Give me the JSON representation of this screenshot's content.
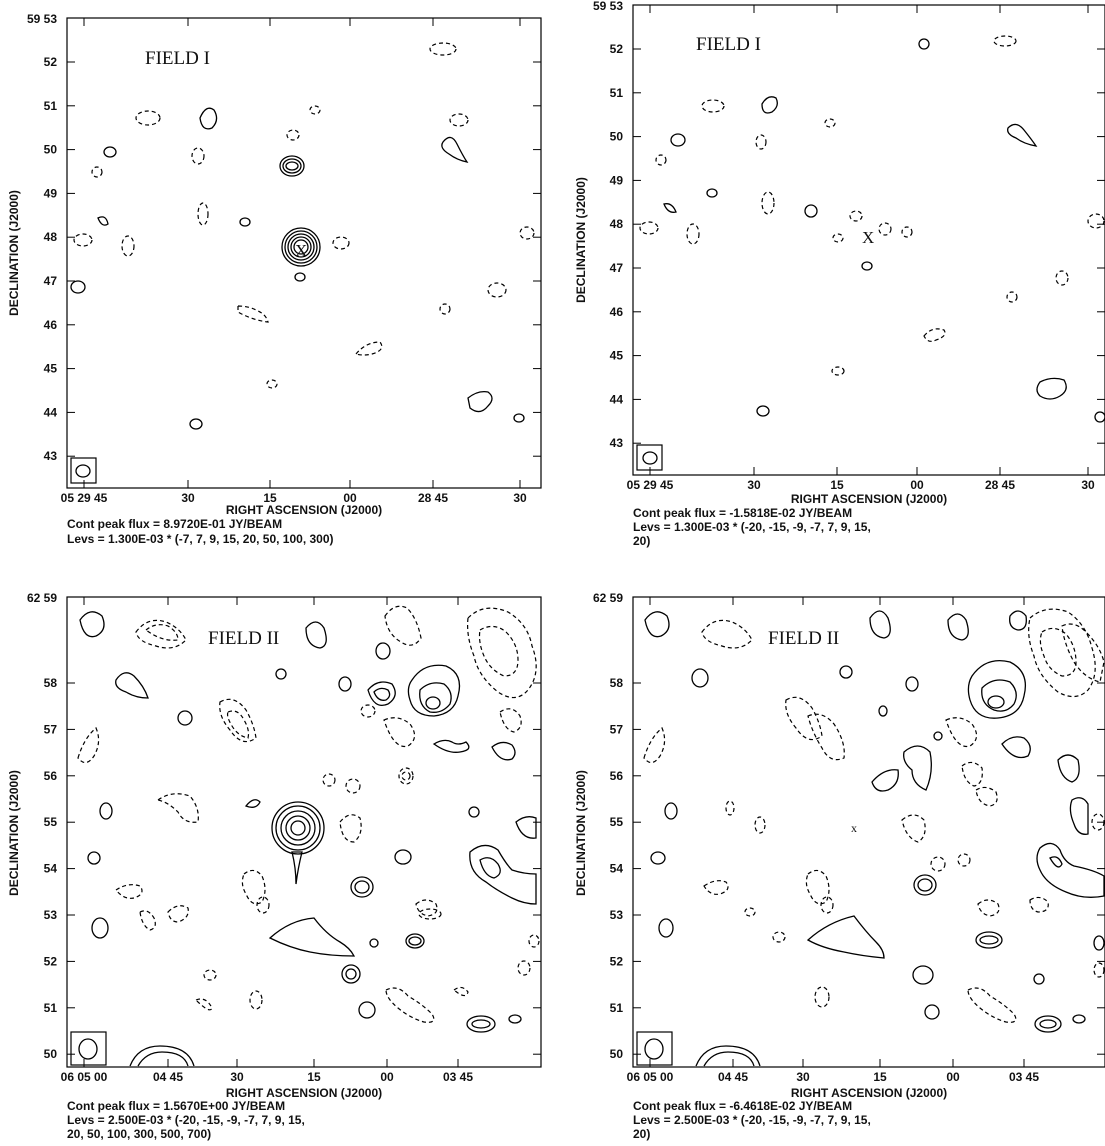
{
  "chart_data": [
    {
      "type": "contour",
      "panel": "top-left",
      "field_label": "FIELD I",
      "marker": "X",
      "xlabel": "RIGHT ASCENSION (J2000)",
      "ylabel": "DECLINATION (J2000)",
      "x_ticks": [
        "05 29 45",
        "30",
        "15",
        "00",
        "28 45",
        "30"
      ],
      "y_top_label": "59 53",
      "y_ticks": [
        "52",
        "51",
        "50",
        "49",
        "48",
        "47",
        "46",
        "45",
        "44",
        "43"
      ],
      "caption_lines": [
        "Cont peak flux =  8.9720E-01 JY/BEAM",
        "Levs = 1.300E-03 * (-7, 7, 9, 15, 20, 50, 100, 300)"
      ],
      "levels_base": 0.0013,
      "levels": [
        -7,
        7,
        9,
        15,
        20,
        50,
        100,
        300
      ]
    },
    {
      "type": "contour",
      "panel": "top-right",
      "field_label": "FIELD I",
      "marker": "X",
      "xlabel": "RIGHT ASCENSION (J2000)",
      "ylabel": "DECLINATION (J2000)",
      "x_ticks": [
        "05 29 45",
        "30",
        "15",
        "00",
        "28 45",
        "30"
      ],
      "y_top_label": "59 53",
      "y_ticks": [
        "52",
        "51",
        "50",
        "49",
        "48",
        "47",
        "46",
        "45",
        "44",
        "43"
      ],
      "caption_lines": [
        "Cont peak flux = -1.5818E-02 JY/BEAM",
        "Levs = 1.300E-03 * (-20, -15, -9, -7, 7, 9, 15,",
        "20)"
      ],
      "levels_base": 0.0013,
      "levels": [
        -20,
        -15,
        -9,
        -7,
        7,
        9,
        15,
        20
      ]
    },
    {
      "type": "contour",
      "panel": "bottom-left",
      "field_label": "FIELD II",
      "marker": "",
      "xlabel": "RIGHT ASCENSION (J2000)",
      "ylabel": "DECLINATION (J2000)",
      "x_ticks": [
        "06 05 00",
        "04 45",
        "30",
        "15",
        "00",
        "03 45"
      ],
      "y_top_label": "62 59",
      "y_ticks": [
        "58",
        "57",
        "56",
        "55",
        "54",
        "53",
        "52",
        "51",
        "50"
      ],
      "caption_lines": [
        "Cont peak flux =  1.5670E+00 JY/BEAM",
        "Levs = 2.500E-03 * (-20, -15, -9, -7, 7, 9, 15,",
        "20, 50, 100, 300, 500, 700)"
      ],
      "levels_base": 0.0025,
      "levels": [
        -20,
        -15,
        -9,
        -7,
        7,
        9,
        15,
        20,
        50,
        100,
        300,
        500,
        700
      ]
    },
    {
      "type": "contour",
      "panel": "bottom-right",
      "field_label": "FIELD II",
      "marker": "x",
      "xlabel": "RIGHT ASCENSION (J2000)",
      "ylabel": "DECLINATION (J2000)",
      "x_ticks": [
        "06 05 00",
        "04 45",
        "30",
        "15",
        "00",
        "03 45"
      ],
      "y_top_label": "62 59",
      "y_ticks": [
        "58",
        "57",
        "56",
        "55",
        "54",
        "53",
        "52",
        "51",
        "50"
      ],
      "caption_lines": [
        "Cont peak flux = -6.4618E-02 JY/BEAM",
        "Levs = 2.500E-03 * (-20, -15, -9, -7, 7, 9, 15,",
        "20)"
      ],
      "levels_base": 0.0025,
      "levels": [
        -20,
        -15,
        -9,
        -7,
        7,
        9,
        15,
        20
      ]
    }
  ]
}
